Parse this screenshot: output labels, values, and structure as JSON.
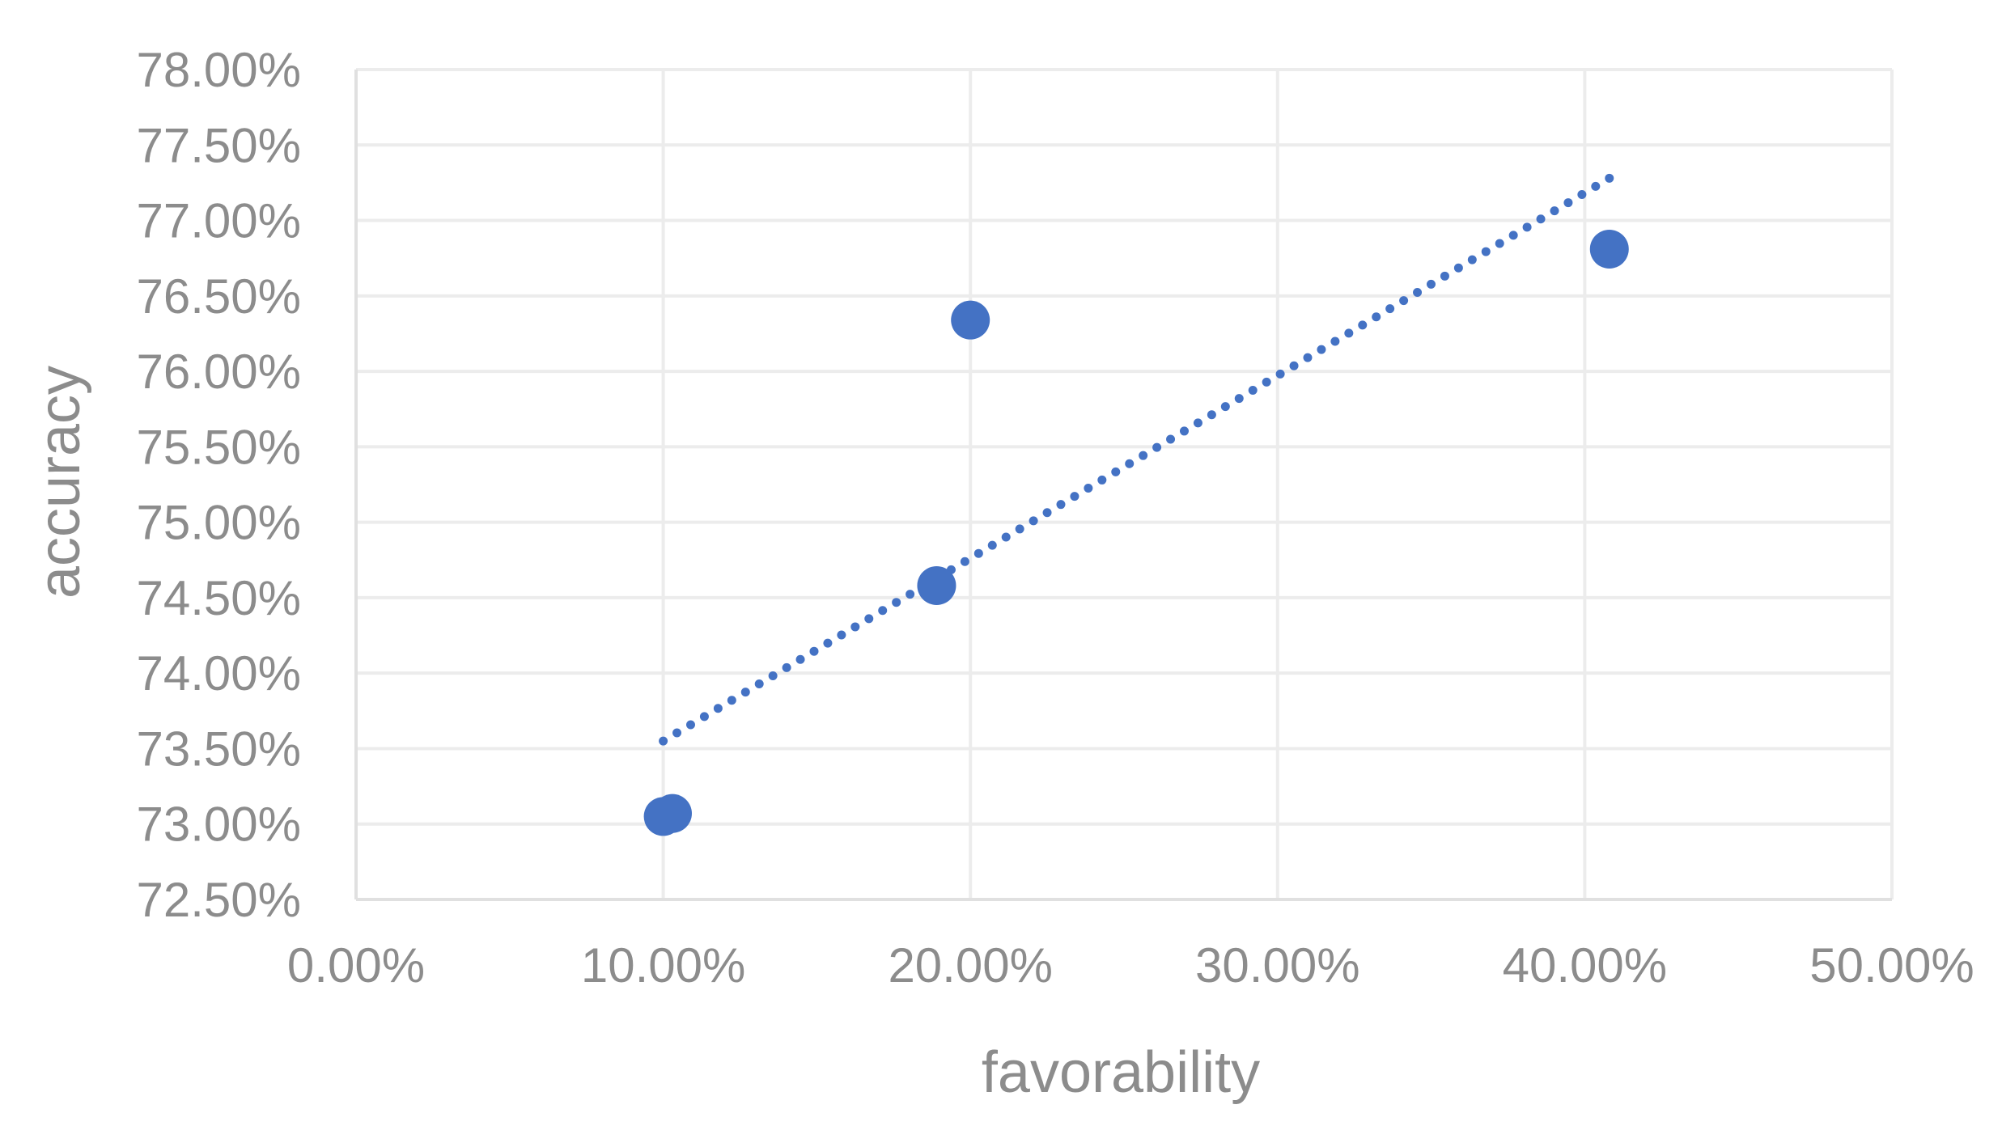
{
  "chart_data": {
    "type": "scatter",
    "title": "",
    "xlabel": "favorability",
    "ylabel": "accuracy",
    "xlim": [
      0,
      0.5
    ],
    "ylim": [
      0.725,
      0.78
    ],
    "x_ticks": [
      0,
      0.1,
      0.2,
      0.3,
      0.4,
      0.5
    ],
    "x_tick_labels": [
      "0.00%",
      "10.00%",
      "20.00%",
      "30.00%",
      "40.00%",
      "50.00%"
    ],
    "y_ticks": [
      0.725,
      0.73,
      0.735,
      0.74,
      0.745,
      0.75,
      0.755,
      0.76,
      0.765,
      0.77,
      0.775,
      0.78
    ],
    "y_tick_labels": [
      "72.50%",
      "73.00%",
      "73.50%",
      "74.00%",
      "74.50%",
      "75.00%",
      "75.50%",
      "76.00%",
      "76.50%",
      "77.00%",
      "77.50%",
      "78.00%"
    ],
    "grid": true,
    "legend": "none",
    "series": [
      {
        "x": [
          0.1,
          0.103,
          0.189,
          0.2,
          0.408
        ],
        "y": [
          0.7305,
          0.7307,
          0.7458,
          0.7634,
          0.7681
        ],
        "color": "#4472c4",
        "marker": "circle"
      }
    ],
    "trendline": {
      "style": "dotted",
      "color": "#4472c4",
      "x_start": 0.1,
      "x_end": 0.408,
      "y_start": 0.7355,
      "y_end": 0.7728
    }
  }
}
